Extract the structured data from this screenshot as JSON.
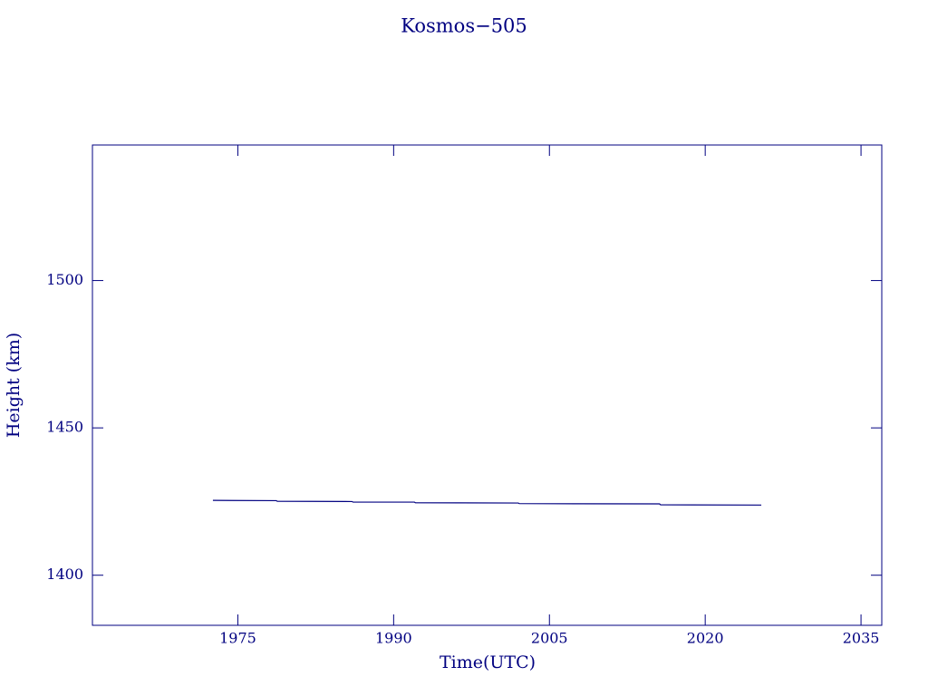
{
  "chart_data": {
    "type": "line",
    "title": "Kosmos−505",
    "x_label": "Time(UTC)",
    "y_label": "Height (km)",
    "xlim": [
      1961,
      2037
    ],
    "xticks": [
      1975,
      1990,
      2005,
      2020,
      2035
    ],
    "ylim": [
      1383,
      1546
    ],
    "yticks": [
      1400,
      1450,
      1500
    ],
    "series": [
      {
        "color": "#000080",
        "x": [
          1972.6,
          1978.7,
          1978.8,
          1986.0,
          1986.1,
          1992.0,
          1992.1,
          2002.0,
          2002.1,
          2015.6,
          2015.7,
          2025.4
        ],
        "values": [
          1425.4,
          1425.3,
          1425.1,
          1425.0,
          1424.8,
          1424.8,
          1424.6,
          1424.5,
          1424.3,
          1424.2,
          1423.9,
          1423.8
        ]
      }
    ]
  }
}
